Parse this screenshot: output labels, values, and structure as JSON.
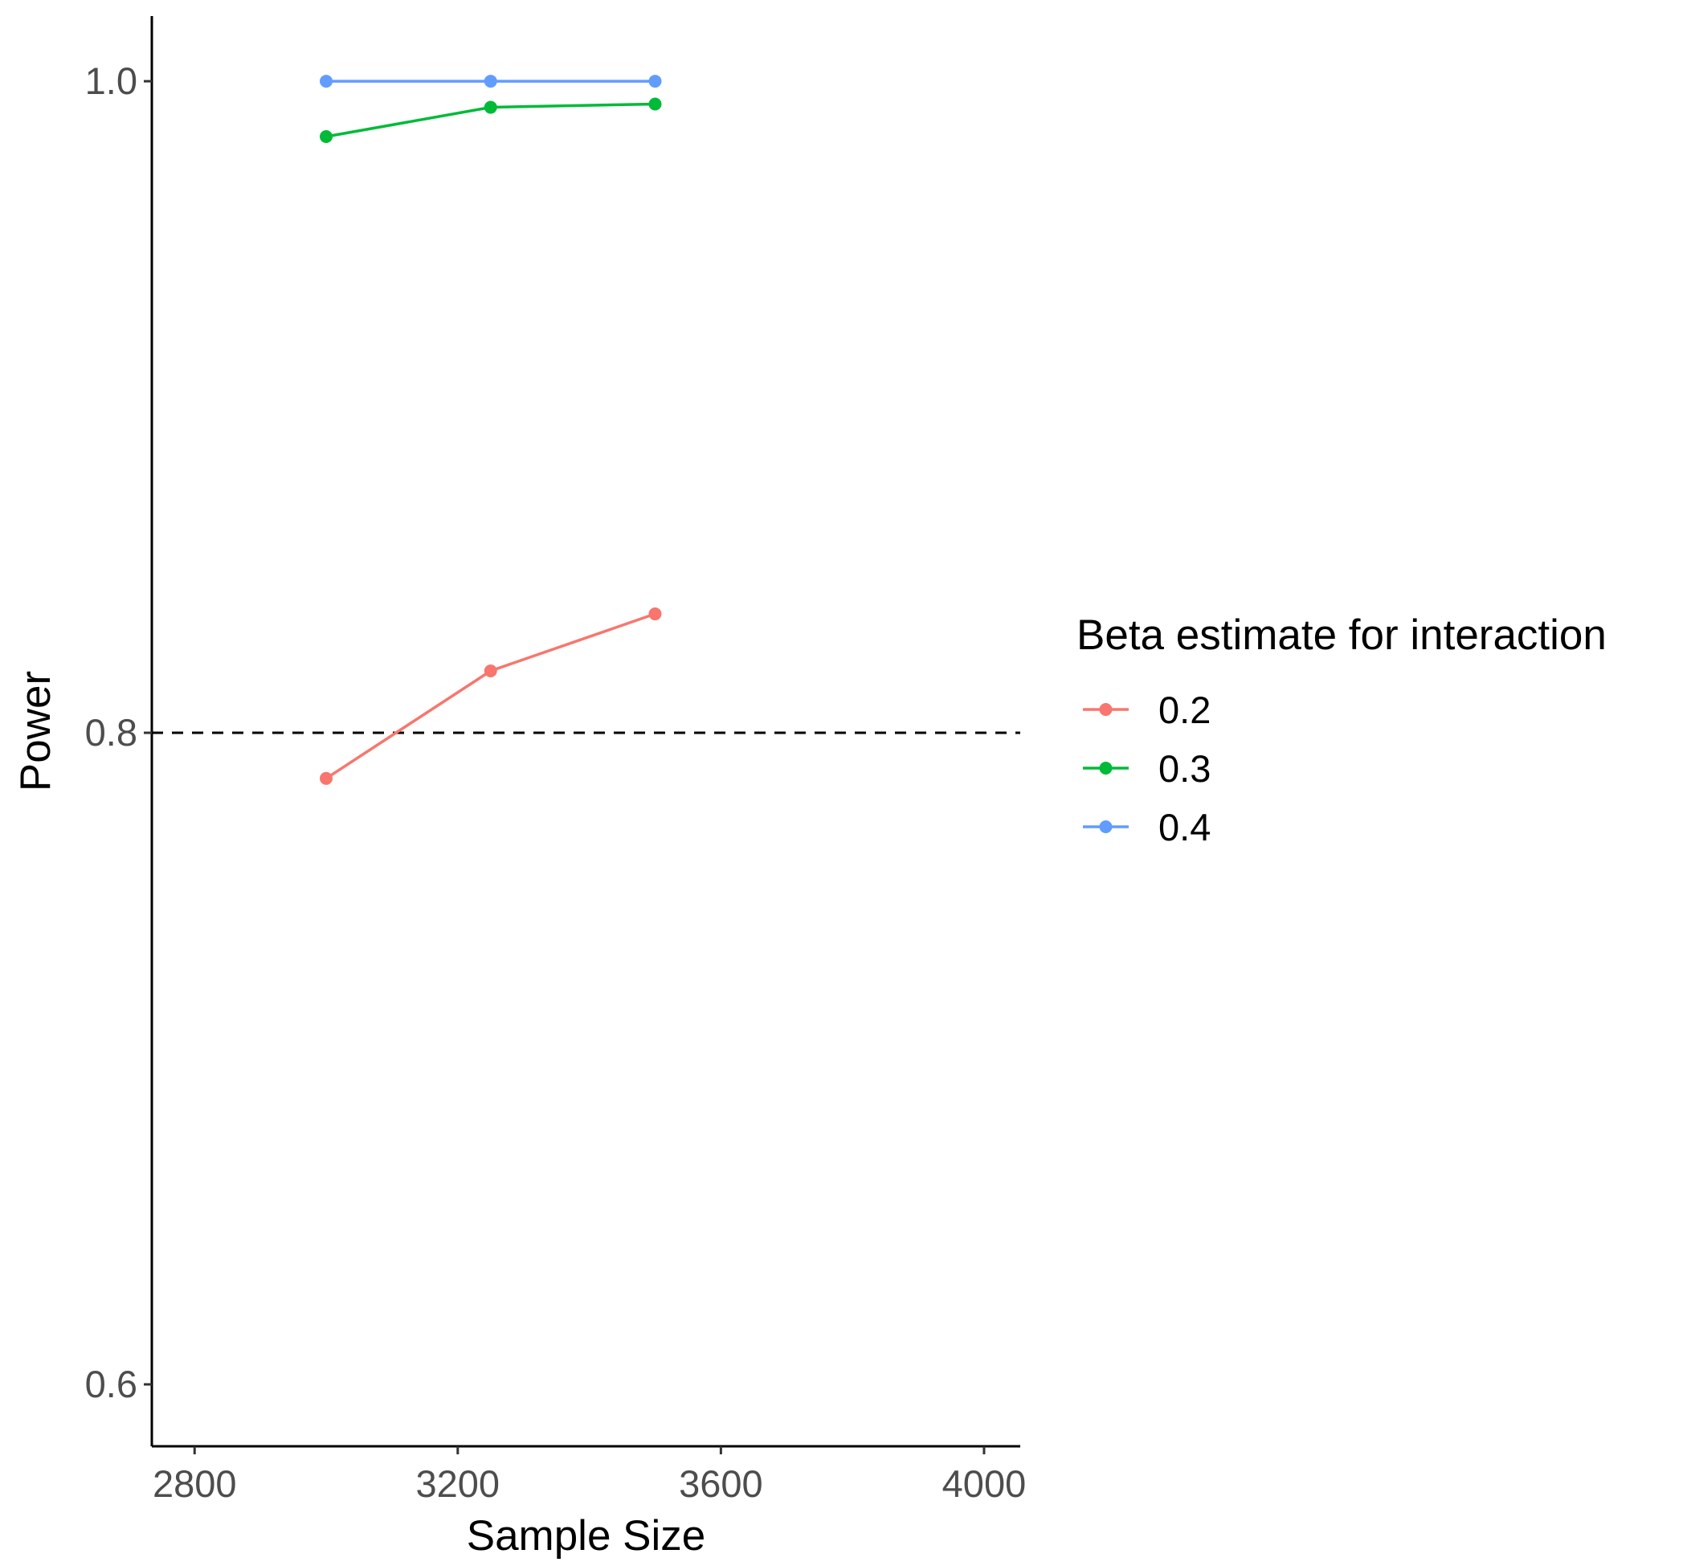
{
  "chart_data": {
    "type": "line",
    "xlabel": "Sample Size",
    "ylabel": "Power",
    "xlim": [
      2735,
      4055
    ],
    "ylim": [
      0.581,
      1.02
    ],
    "x_ticks": [
      2800,
      3200,
      3600,
      4000
    ],
    "y_ticks": [
      0.6,
      0.8,
      1.0
    ],
    "x_tick_labels": [
      "2800",
      "3200",
      "3600",
      "4000"
    ],
    "y_tick_labels": [
      "0.6",
      "0.8",
      "1.0"
    ],
    "reference_line": {
      "y": 0.8,
      "style": "dashed",
      "color": "#000000"
    },
    "grid": false,
    "legend": {
      "title": "Beta estimate for interaction",
      "position": "right"
    },
    "series": [
      {
        "name": "0.2",
        "color": "#F8766D",
        "x": [
          3000,
          3250,
          3500
        ],
        "y": [
          0.786,
          0.819,
          0.8365
        ]
      },
      {
        "name": "0.3",
        "color": "#00BA38",
        "x": [
          3000,
          3250,
          3500
        ],
        "y": [
          0.983,
          0.992,
          0.993
        ]
      },
      {
        "name": "0.4",
        "color": "#619CFF",
        "x": [
          3000,
          3250,
          3500
        ],
        "y": [
          1.0,
          1.0,
          1.0
        ]
      }
    ]
  }
}
